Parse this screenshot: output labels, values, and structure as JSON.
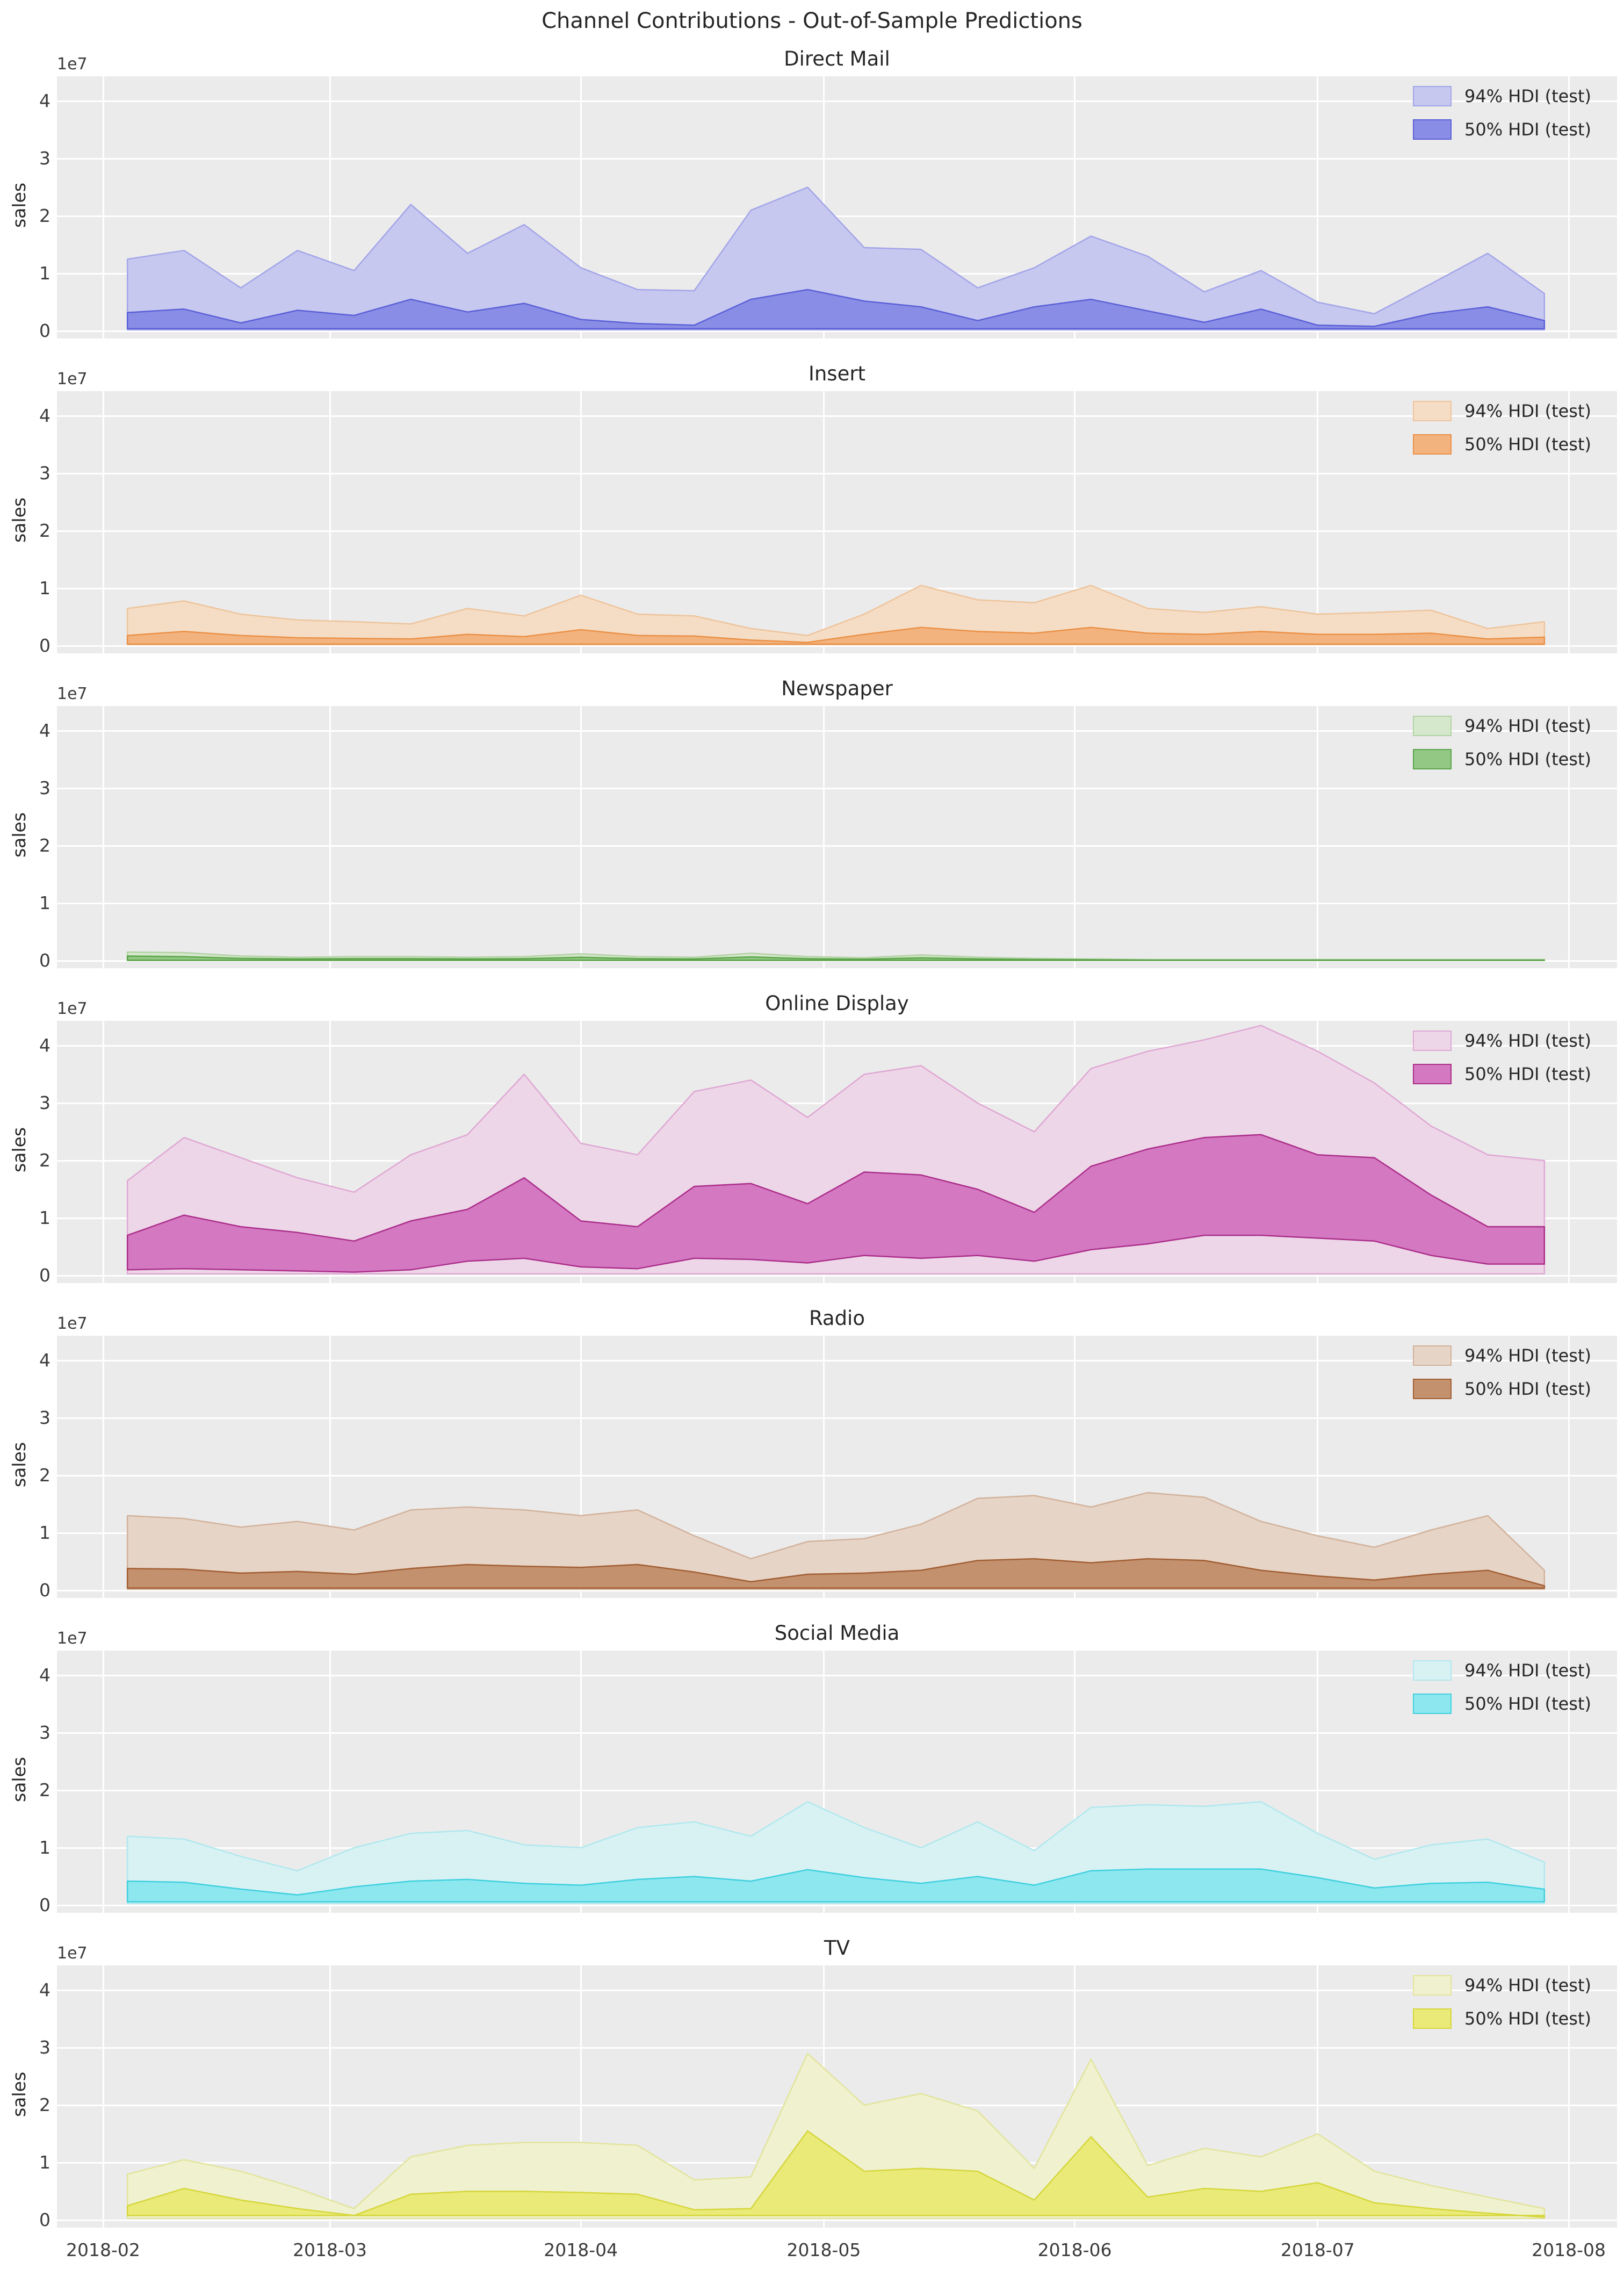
{
  "figure": {
    "suptitle": "Channel Contributions - Out-of-Sample Predictions",
    "ylabel": "sales",
    "y_offset_text": "1e7",
    "yticklabels": [
      "0",
      "1",
      "2",
      "3",
      "4"
    ],
    "xticklabels": [
      "2018-02",
      "2018-03",
      "2018-04",
      "2018-05",
      "2018-06",
      "2018-07",
      "2018-08"
    ],
    "legend_labels": [
      "94% HDI (test)",
      "50% HDI (test)"
    ],
    "colors": {
      "figure_background": "#ffffff",
      "axes_background": "#ebebeb",
      "grid": "#ffffff",
      "text": "#262626",
      "tick_text": "#3b3b3b"
    }
  },
  "chart_data": {
    "type": "area",
    "subtype": "hdi-band-timeseries",
    "x_dates": [
      "2018-02-04",
      "2018-02-11",
      "2018-02-18",
      "2018-02-25",
      "2018-03-04",
      "2018-03-11",
      "2018-03-18",
      "2018-03-25",
      "2018-04-01",
      "2018-04-08",
      "2018-04-15",
      "2018-04-22",
      "2018-04-29",
      "2018-05-06",
      "2018-05-13",
      "2018-05-20",
      "2018-05-27",
      "2018-06-03",
      "2018-06-10",
      "2018-06-17",
      "2018-06-24",
      "2018-07-01",
      "2018-07-08",
      "2018-07-15",
      "2018-07-22",
      "2018-07-29"
    ],
    "x_axis_range": [
      "2018-01-27",
      "2018-08-06"
    ],
    "x_tick_day_offsets": [
      0,
      28,
      59,
      89,
      120,
      150,
      181
    ],
    "ylim": [
      -0.13,
      4.43
    ],
    "y_scale_factor": "1e7",
    "yticks": [
      0,
      1,
      2,
      3,
      4
    ],
    "grid": true,
    "legend_position": "upper right",
    "channels": [
      {
        "title": "Direct Mail",
        "ylabel": "sales",
        "band_94": {
          "label": "94% HDI (test)",
          "fill": "#c7c8ef",
          "edge": "#a3a5e8",
          "upper": [
            1.25,
            1.4,
            0.75,
            1.4,
            1.05,
            2.2,
            1.35,
            1.85,
            1.1,
            0.72,
            0.7,
            2.1,
            2.5,
            1.45,
            1.42,
            0.75,
            1.1,
            1.65,
            1.3,
            0.68,
            1.05,
            0.5,
            0.3,
            0.82,
            1.35,
            0.65
          ],
          "lower": 0.02
        },
        "band_50": {
          "label": "50% HDI (test)",
          "fill": "#8a8de5",
          "edge": "#5a60d8",
          "upper": [
            0.32,
            0.38,
            0.14,
            0.36,
            0.27,
            0.55,
            0.33,
            0.48,
            0.2,
            0.13,
            0.1,
            0.55,
            0.72,
            0.52,
            0.42,
            0.18,
            0.42,
            0.55,
            0.35,
            0.15,
            0.38,
            0.1,
            0.08,
            0.3,
            0.42,
            0.18
          ],
          "lower": 0.04
        }
      },
      {
        "title": "Insert",
        "ylabel": "sales",
        "band_94": {
          "label": "94% HDI (test)",
          "fill": "#f5ddc5",
          "edge": "#eec49c",
          "upper": [
            0.65,
            0.78,
            0.55,
            0.45,
            0.42,
            0.38,
            0.65,
            0.52,
            0.88,
            0.55,
            0.52,
            0.3,
            0.18,
            0.55,
            1.05,
            0.8,
            0.75,
            1.05,
            0.65,
            0.58,
            0.68,
            0.55,
            0.58,
            0.62,
            0.3,
            0.42
          ],
          "lower": 0.02
        },
        "band_50": {
          "label": "50% HDI (test)",
          "fill": "#f3b37f",
          "edge": "#ea9147",
          "upper": [
            0.18,
            0.25,
            0.18,
            0.14,
            0.13,
            0.12,
            0.2,
            0.16,
            0.28,
            0.18,
            0.17,
            0.1,
            0.06,
            0.2,
            0.32,
            0.25,
            0.22,
            0.32,
            0.22,
            0.2,
            0.25,
            0.2,
            0.2,
            0.22,
            0.12,
            0.15
          ],
          "lower": 0.03
        }
      },
      {
        "title": "Newspaper",
        "ylabel": "sales",
        "band_94": {
          "label": "94% HDI (test)",
          "fill": "#d6e8cc",
          "edge": "#b2d2a3",
          "upper": [
            0.15,
            0.14,
            0.08,
            0.06,
            0.07,
            0.07,
            0.06,
            0.07,
            0.12,
            0.07,
            0.06,
            0.13,
            0.07,
            0.05,
            0.1,
            0.06,
            0.04,
            0.03,
            0.02,
            0.02,
            0.02,
            0.02,
            0.02,
            0.02,
            0.02,
            0.02
          ],
          "lower": 0.004
        },
        "band_50": {
          "label": "50% HDI (test)",
          "fill": "#93c884",
          "edge": "#5aa449",
          "upper": [
            0.08,
            0.07,
            0.04,
            0.03,
            0.035,
            0.035,
            0.03,
            0.035,
            0.06,
            0.035,
            0.03,
            0.065,
            0.035,
            0.025,
            0.05,
            0.03,
            0.02,
            0.015,
            0.01,
            0.01,
            0.01,
            0.01,
            0.01,
            0.01,
            0.01,
            0.01
          ],
          "lower": 0.008
        }
      },
      {
        "title": "Online Display",
        "ylabel": "sales",
        "band_94": {
          "label": "94% HDI (test)",
          "fill": "#eed6e9",
          "edge": "#dfa7d3",
          "upper": [
            1.65,
            2.4,
            2.05,
            1.7,
            1.45,
            2.1,
            2.45,
            3.5,
            2.3,
            2.1,
            3.2,
            3.4,
            2.75,
            3.5,
            3.65,
            3.0,
            2.5,
            3.6,
            3.9,
            4.1,
            4.35,
            3.9,
            3.35,
            2.6,
            2.1,
            2.0
          ],
          "lower": 0.03
        },
        "band_50": {
          "label": "50% HDI (test)",
          "fill": "#d478c2",
          "edge": "#ab2e8a",
          "upper": [
            0.7,
            1.05,
            0.85,
            0.75,
            0.6,
            0.95,
            1.15,
            1.7,
            0.95,
            0.85,
            1.55,
            1.6,
            1.25,
            1.8,
            1.75,
            1.5,
            1.1,
            1.9,
            2.2,
            2.4,
            2.45,
            2.1,
            2.05,
            1.4,
            0.85,
            0.85
          ],
          "lower": [
            0.1,
            0.12,
            0.1,
            0.08,
            0.06,
            0.1,
            0.25,
            0.3,
            0.15,
            0.12,
            0.3,
            0.28,
            0.22,
            0.35,
            0.3,
            0.35,
            0.25,
            0.45,
            0.55,
            0.7,
            0.7,
            0.65,
            0.6,
            0.35,
            0.2,
            0.2
          ]
        }
      },
      {
        "title": "Radio",
        "ylabel": "sales",
        "band_94": {
          "label": "94% HDI (test)",
          "fill": "#e6d4c7",
          "edge": "#d2b29b",
          "upper": [
            1.3,
            1.25,
            1.1,
            1.2,
            1.05,
            1.4,
            1.45,
            1.4,
            1.3,
            1.4,
            0.95,
            0.55,
            0.85,
            0.9,
            1.15,
            1.6,
            1.65,
            1.45,
            1.7,
            1.62,
            1.2,
            0.95,
            0.75,
            1.05,
            1.3,
            0.35
          ],
          "lower": 0.02
        },
        "band_50": {
          "label": "50% HDI (test)",
          "fill": "#c3916d",
          "edge": "#a25e33",
          "upper": [
            0.38,
            0.37,
            0.3,
            0.33,
            0.28,
            0.38,
            0.45,
            0.42,
            0.4,
            0.45,
            0.32,
            0.15,
            0.28,
            0.3,
            0.35,
            0.52,
            0.55,
            0.48,
            0.55,
            0.52,
            0.35,
            0.25,
            0.18,
            0.28,
            0.35,
            0.08
          ],
          "lower": 0.04
        }
      },
      {
        "title": "Social Media",
        "ylabel": "sales",
        "band_94": {
          "label": "94% HDI (test)",
          "fill": "#d8f2f4",
          "edge": "#b0e8ee",
          "upper": [
            1.2,
            1.15,
            0.85,
            0.6,
            1.0,
            1.25,
            1.3,
            1.05,
            1.0,
            1.35,
            1.45,
            1.2,
            1.8,
            1.35,
            1.0,
            1.45,
            0.95,
            1.7,
            1.75,
            1.72,
            1.8,
            1.25,
            0.8,
            1.05,
            1.15,
            0.75
          ],
          "lower": 0.03
        },
        "band_50": {
          "label": "50% HDI (test)",
          "fill": "#8ce7ef",
          "edge": "#3fd0de",
          "upper": [
            0.42,
            0.4,
            0.28,
            0.18,
            0.32,
            0.42,
            0.45,
            0.38,
            0.35,
            0.45,
            0.5,
            0.42,
            0.62,
            0.48,
            0.38,
            0.5,
            0.35,
            0.6,
            0.63,
            0.63,
            0.63,
            0.48,
            0.3,
            0.38,
            0.4,
            0.28
          ],
          "lower": 0.06
        }
      },
      {
        "title": "TV",
        "ylabel": "sales",
        "band_94": {
          "label": "94% HDI (test)",
          "fill": "#f0f1cf",
          "edge": "#e2e49c",
          "upper": [
            0.8,
            1.05,
            0.85,
            0.55,
            0.2,
            1.1,
            1.3,
            1.35,
            1.35,
            1.3,
            0.7,
            0.75,
            2.9,
            2.0,
            2.2,
            1.9,
            0.9,
            2.8,
            0.95,
            1.25,
            1.1,
            1.5,
            0.85,
            0.6,
            0.4,
            0.2
          ],
          "lower": 0.03
        },
        "band_50": {
          "label": "50% HDI (test)",
          "fill": "#eaea78",
          "edge": "#d5d63b",
          "upper": [
            0.25,
            0.55,
            0.35,
            0.2,
            0.08,
            0.45,
            0.5,
            0.5,
            0.48,
            0.45,
            0.18,
            0.2,
            1.55,
            0.85,
            0.9,
            0.85,
            0.35,
            1.45,
            0.4,
            0.55,
            0.5,
            0.65,
            0.3,
            0.2,
            0.12,
            0.05
          ],
          "lower": 0.08
        }
      }
    ]
  }
}
